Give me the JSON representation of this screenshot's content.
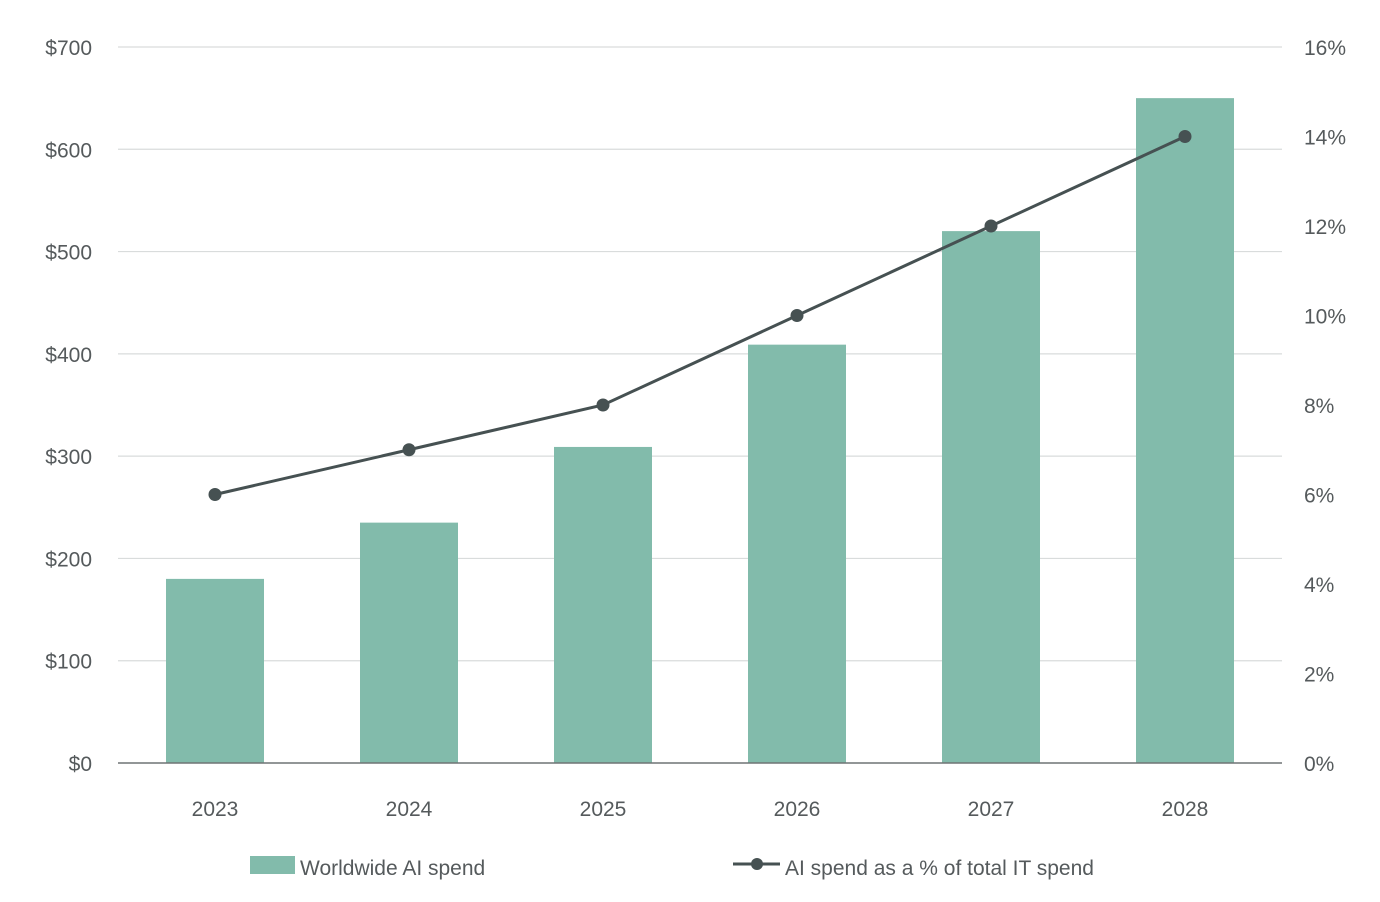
{
  "chart_data": {
    "type": "bar",
    "categories": [
      "2023",
      "2024",
      "2025",
      "2026",
      "2027",
      "2028"
    ],
    "series": [
      {
        "name": "Worldwide AI spend",
        "type": "bar",
        "axis": "left",
        "values": [
          180,
          235,
          309,
          409,
          520,
          650
        ]
      },
      {
        "name": "AI spend as a % of total IT spend",
        "type": "line",
        "axis": "right",
        "values": [
          6.0,
          7.0,
          8.0,
          10.0,
          12.0,
          14.0
        ]
      }
    ],
    "left_axis": {
      "ylim": [
        0,
        700
      ],
      "ticks": [
        0,
        100,
        200,
        300,
        400,
        500,
        600,
        700
      ],
      "tick_labels": [
        "$0",
        "$100",
        "$200",
        "$300",
        "$400",
        "$500",
        "$600",
        "$700"
      ]
    },
    "right_axis": {
      "ylim": [
        0,
        16
      ],
      "ticks": [
        0,
        2,
        4,
        6,
        8,
        10,
        12,
        14,
        16
      ],
      "tick_labels": [
        "0%",
        "2%",
        "4%",
        "6%",
        "8%",
        "10%",
        "12%",
        "14%",
        "16%"
      ]
    },
    "grid": true,
    "legend_position": "bottom",
    "colors": {
      "bar": "#82bbab",
      "line": "#465152",
      "grid": "#d9dcdc",
      "text": "#555a5c"
    }
  }
}
